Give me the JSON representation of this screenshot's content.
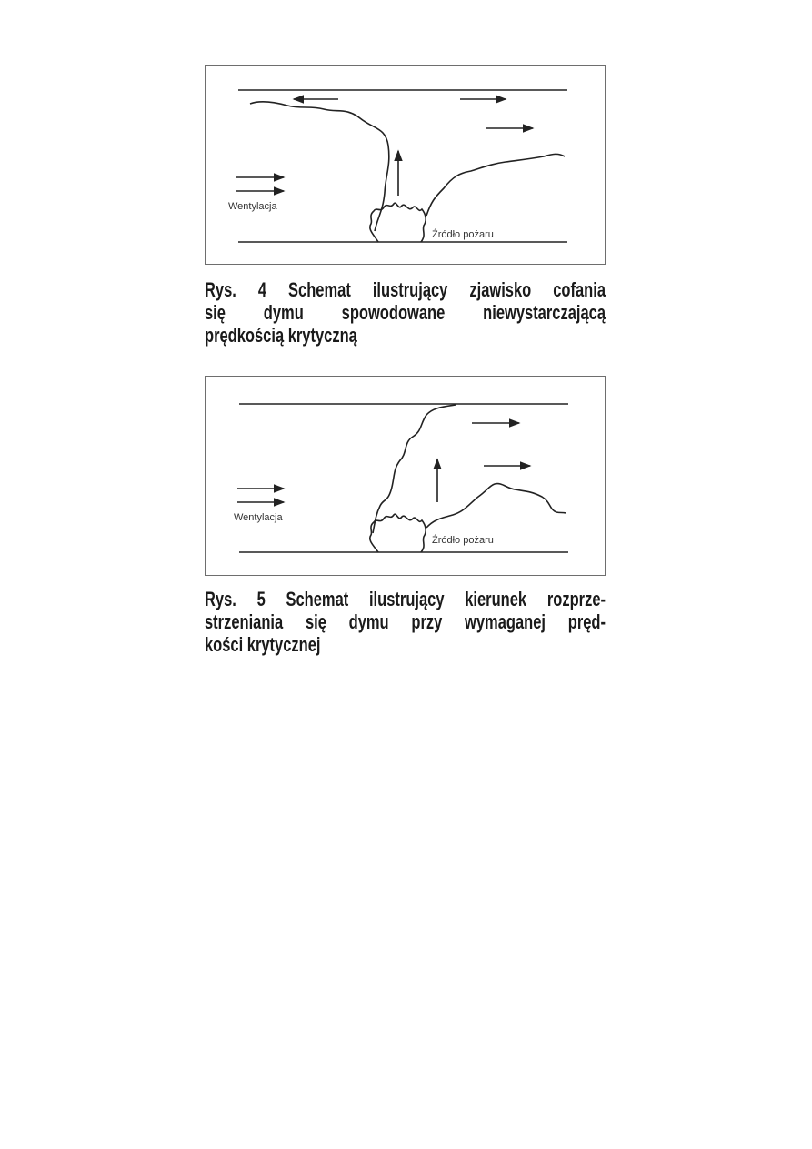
{
  "figures": [
    {
      "labels": {
        "ventilation": "Wentylacja",
        "source": "Źródło pożaru"
      },
      "caption_lines": [
        "Rys. 4 Schemat ilustrujący zjawisko cofania",
        "się dymu spowodowane niewystarczającą",
        "prędkością krytyczną"
      ]
    },
    {
      "labels": {
        "ventilation": "Wentylacja",
        "source": "Źródło pożaru"
      },
      "caption_lines": [
        "Rys. 5 Schemat ilustrujący kierunek rozprze-",
        "strzeniania się dymu przy wymaganej pręd-",
        "kości krytycznej"
      ]
    }
  ]
}
